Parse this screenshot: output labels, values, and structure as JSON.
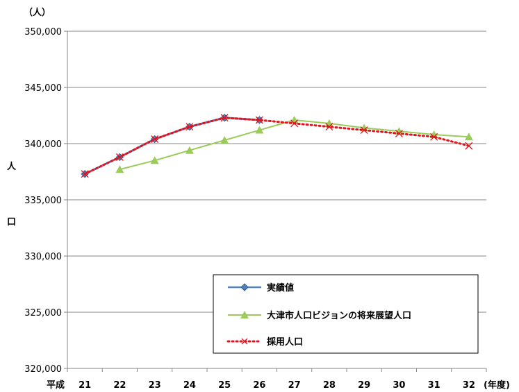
{
  "chart_data": {
    "type": "line",
    "title": "",
    "y_unit_label": "（人）",
    "ylabel_chars": [
      "人",
      "口"
    ],
    "x_prefix": "平成",
    "x_suffix": "(年度)",
    "categories": [
      "21",
      "22",
      "23",
      "24",
      "25",
      "26",
      "27",
      "28",
      "29",
      "30",
      "31",
      "32"
    ],
    "ylim": [
      320000,
      350000
    ],
    "yticks": [
      320000,
      325000,
      330000,
      335000,
      340000,
      345000,
      350000
    ],
    "ytick_labels": [
      "320,000",
      "325,000",
      "330,000",
      "335,000",
      "340,000",
      "345,000",
      "350,000"
    ],
    "grid": "horizontal",
    "legend_position": "bottom-right inside",
    "series": [
      {
        "name": "実績値",
        "color": "#4F81BD",
        "marker": "diamond",
        "x": [
          "21",
          "22",
          "23",
          "24",
          "25",
          "26"
        ],
        "values": [
          337300,
          338800,
          340400,
          341500,
          342300,
          342100
        ]
      },
      {
        "name": "大津市人口ビジョンの将来展望人口",
        "color": "#9BCB59",
        "marker": "triangle",
        "x": [
          "22",
          "23",
          "24",
          "25",
          "26",
          "27",
          "28",
          "29",
          "30",
          "31",
          "32"
        ],
        "values": [
          337700,
          338500,
          339400,
          340300,
          341200,
          342100,
          341800,
          341400,
          341100,
          340800,
          340600
        ]
      },
      {
        "name": "採用人口",
        "color": "#E0141E",
        "marker": "x",
        "x": [
          "21",
          "22",
          "23",
          "24",
          "25",
          "26",
          "27",
          "28",
          "29",
          "30",
          "31",
          "32"
        ],
        "values": [
          337300,
          338800,
          340400,
          341500,
          342300,
          342100,
          341800,
          341500,
          341200,
          340900,
          340600,
          339800
        ]
      }
    ]
  }
}
